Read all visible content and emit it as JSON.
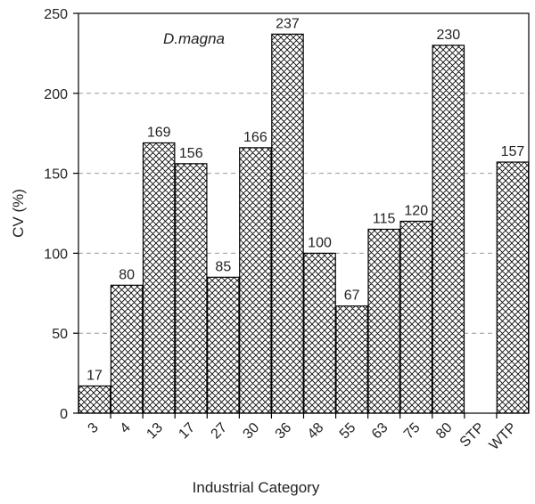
{
  "chart_data": {
    "type": "bar",
    "annotation": "D.magna",
    "xlabel": "Industrial Category",
    "ylabel": "CV (%)",
    "ylim": [
      0,
      250
    ],
    "yticks": [
      0,
      50,
      100,
      150,
      200,
      250
    ],
    "grid": "horizontal dashed",
    "categories": [
      "3",
      "4",
      "13",
      "17",
      "27",
      "30",
      "36",
      "48",
      "55",
      "63",
      "75",
      "80",
      "STP",
      "WTP"
    ],
    "values": [
      17,
      80,
      169,
      156,
      85,
      166,
      237,
      100,
      67,
      115,
      120,
      230,
      null,
      157
    ],
    "data_labels": [
      "17",
      "80",
      "169",
      "156",
      "85",
      "166",
      "237",
      "100",
      "67",
      "115",
      "120",
      "230",
      "",
      "157"
    ],
    "bar_fill": "crosshatch",
    "colors": {
      "bar_stroke": "#000000",
      "hatch": "#000000",
      "grid": "#999999"
    }
  }
}
